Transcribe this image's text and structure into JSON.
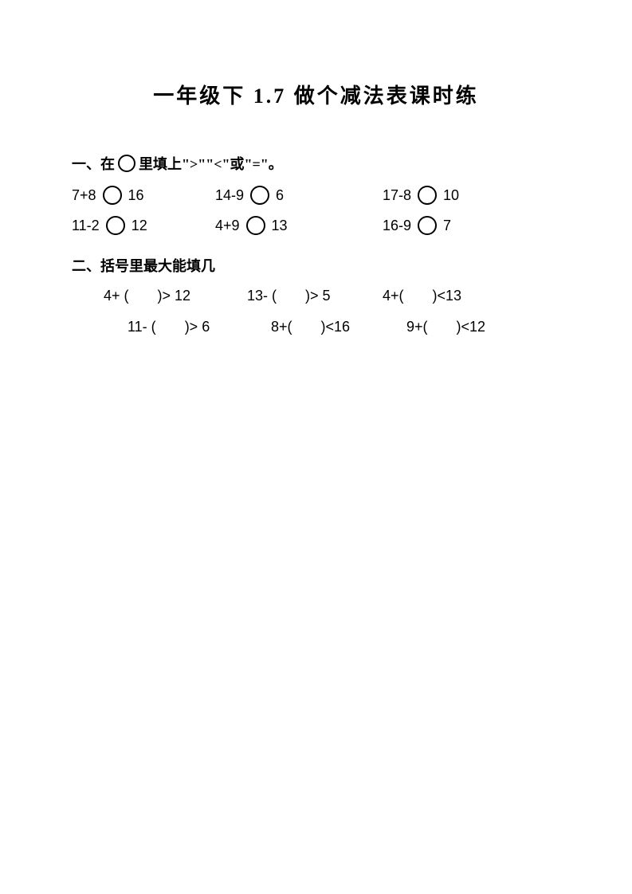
{
  "title": "一年级下 1.7 做个减法表课时练",
  "section1": {
    "header_prefix": "一、在",
    "header_suffix": "里填上\">\"\"<\"或\"=\"。",
    "rows": [
      [
        {
          "left": "7+8",
          "right": "16"
        },
        {
          "left": "14-9",
          "right": "6"
        },
        {
          "left": "17-8",
          "right": "10"
        }
      ],
      [
        {
          "left": "11-2",
          "right": "12"
        },
        {
          "left": "4+9",
          "right": "13"
        },
        {
          "left": "16-9",
          "right": "7"
        }
      ]
    ]
  },
  "section2": {
    "header": "二、括号里最大能填几",
    "rows": [
      [
        {
          "left": "4+ (",
          "right": ")> 12"
        },
        {
          "left": "13- (",
          "right": ")> 5"
        },
        {
          "left": "4+(",
          "right": ")<13"
        }
      ],
      [
        {
          "left": "11- (",
          "right": ")> 6"
        },
        {
          "left": "8+(",
          "right": ")<16"
        },
        {
          "left": "9+(",
          "right": ")<12"
        }
      ]
    ]
  },
  "colors": {
    "text": "#000000",
    "background": "#ffffff",
    "circle_border": "#000000"
  }
}
